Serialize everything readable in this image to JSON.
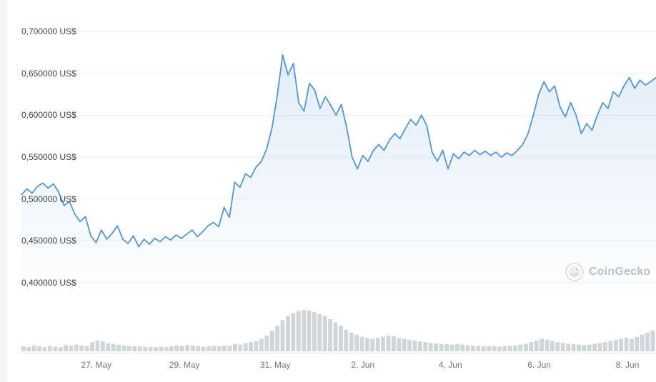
{
  "watermark": {
    "label": "CoinGecko"
  },
  "chart_data": {
    "type": "line",
    "title": "",
    "currency": "US$",
    "grid": "horizontal",
    "legend_position": "none",
    "y_axis": {
      "min": 0.4,
      "max": 0.7,
      "labels": [
        "0,700000 US$",
        "0,650000 US$",
        "0,600000 US$",
        "0,550000 US$",
        "0,500000 US$",
        "0,450000 US$",
        "0,400000 US$"
      ],
      "values": [
        0.7,
        0.65,
        0.6,
        0.55,
        0.5,
        0.45,
        0.4
      ]
    },
    "x_axis": {
      "labels": [
        "27. May",
        "29. May",
        "31. May",
        "2. Jun",
        "4. Jun",
        "6. Jun",
        "8. Jun"
      ],
      "positions": [
        0.118,
        0.257,
        0.4,
        0.538,
        0.676,
        0.816,
        0.955
      ]
    },
    "price_series": [
      0.505,
      0.512,
      0.507,
      0.515,
      0.519,
      0.513,
      0.518,
      0.508,
      0.492,
      0.497,
      0.482,
      0.473,
      0.479,
      0.456,
      0.448,
      0.463,
      0.452,
      0.459,
      0.468,
      0.452,
      0.447,
      0.456,
      0.443,
      0.452,
      0.446,
      0.453,
      0.449,
      0.455,
      0.451,
      0.457,
      0.453,
      0.458,
      0.463,
      0.455,
      0.461,
      0.468,
      0.472,
      0.467,
      0.49,
      0.478,
      0.52,
      0.514,
      0.53,
      0.526,
      0.538,
      0.545,
      0.56,
      0.585,
      0.625,
      0.672,
      0.648,
      0.662,
      0.615,
      0.605,
      0.638,
      0.63,
      0.608,
      0.622,
      0.612,
      0.6,
      0.613,
      0.585,
      0.55,
      0.536,
      0.552,
      0.545,
      0.558,
      0.565,
      0.558,
      0.57,
      0.578,
      0.572,
      0.584,
      0.595,
      0.588,
      0.6,
      0.588,
      0.556,
      0.545,
      0.558,
      0.536,
      0.554,
      0.548,
      0.556,
      0.552,
      0.558,
      0.553,
      0.557,
      0.552,
      0.556,
      0.55,
      0.555,
      0.552,
      0.558,
      0.565,
      0.578,
      0.6,
      0.625,
      0.64,
      0.628,
      0.635,
      0.61,
      0.598,
      0.615,
      0.6,
      0.578,
      0.59,
      0.582,
      0.6,
      0.615,
      0.608,
      0.628,
      0.622,
      0.635,
      0.645,
      0.632,
      0.642,
      0.636,
      0.64,
      0.645
    ],
    "volume_series": [
      0.12,
      0.1,
      0.14,
      0.12,
      0.1,
      0.13,
      0.11,
      0.1,
      0.15,
      0.13,
      0.16,
      0.14,
      0.12,
      0.22,
      0.26,
      0.24,
      0.2,
      0.18,
      0.16,
      0.14,
      0.13,
      0.12,
      0.12,
      0.11,
      0.1,
      0.1,
      0.11,
      0.1,
      0.12,
      0.14,
      0.13,
      0.15,
      0.14,
      0.12,
      0.11,
      0.12,
      0.13,
      0.12,
      0.14,
      0.13,
      0.18,
      0.16,
      0.2,
      0.22,
      0.25,
      0.3,
      0.38,
      0.5,
      0.62,
      0.75,
      0.85,
      0.92,
      0.97,
      1.0,
      0.98,
      0.95,
      0.9,
      0.85,
      0.78,
      0.7,
      0.62,
      0.52,
      0.45,
      0.4,
      0.35,
      0.32,
      0.3,
      0.32,
      0.35,
      0.38,
      0.36,
      0.32,
      0.3,
      0.28,
      0.26,
      0.24,
      0.22,
      0.2,
      0.19,
      0.18,
      0.17,
      0.16,
      0.18,
      0.16,
      0.15,
      0.14,
      0.13,
      0.12,
      0.13,
      0.12,
      0.11,
      0.12,
      0.13,
      0.14,
      0.16,
      0.18,
      0.22,
      0.26,
      0.3,
      0.28,
      0.25,
      0.22,
      0.2,
      0.18,
      0.17,
      0.16,
      0.15,
      0.16,
      0.18,
      0.2,
      0.22,
      0.25,
      0.28,
      0.3,
      0.33,
      0.3,
      0.35,
      0.4,
      0.45,
      0.5
    ],
    "colors": {
      "line": "#5395d5",
      "area": "#5395d5",
      "volume": "#d0d5d9",
      "grid": "#edeef0",
      "axis_line": "#e3e6e8"
    }
  }
}
